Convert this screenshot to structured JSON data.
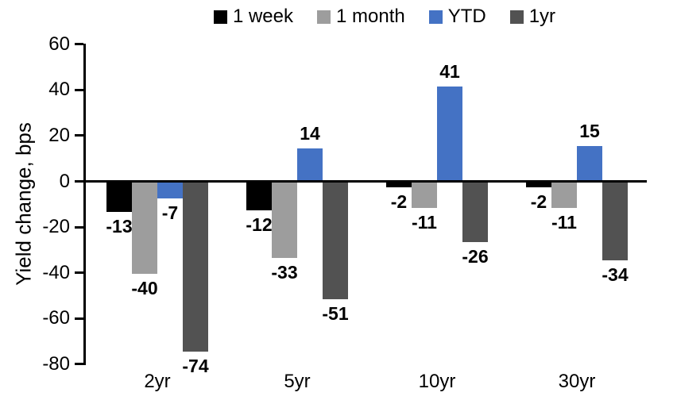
{
  "chart_data": {
    "type": "bar",
    "title": "",
    "ylabel": "Yield change, bps",
    "xlabel": "",
    "categories": [
      "2yr",
      "5yr",
      "10yr",
      "30yr"
    ],
    "series": [
      {
        "name": "1 week",
        "color": "#000000",
        "values": [
          -13,
          -12,
          -2,
          -2
        ]
      },
      {
        "name": "1 month",
        "color": "#9D9D9D",
        "values": [
          -40,
          -33,
          -11,
          -11
        ]
      },
      {
        "name": "YTD",
        "color": "#4472C4",
        "values": [
          -7,
          14,
          41,
          15
        ]
      },
      {
        "name": "1yr",
        "color": "#525252",
        "values": [
          -74,
          -51,
          -26,
          -34
        ]
      }
    ],
    "ylim": [
      -80,
      60
    ],
    "yticks": [
      60,
      40,
      20,
      0,
      -20,
      -40,
      -60,
      -80
    ],
    "ytick_step": 20,
    "grid": false,
    "legend_position": "top",
    "data_labels": "outside-end",
    "axis_color": "#000000",
    "background": "#FFFFFF"
  }
}
